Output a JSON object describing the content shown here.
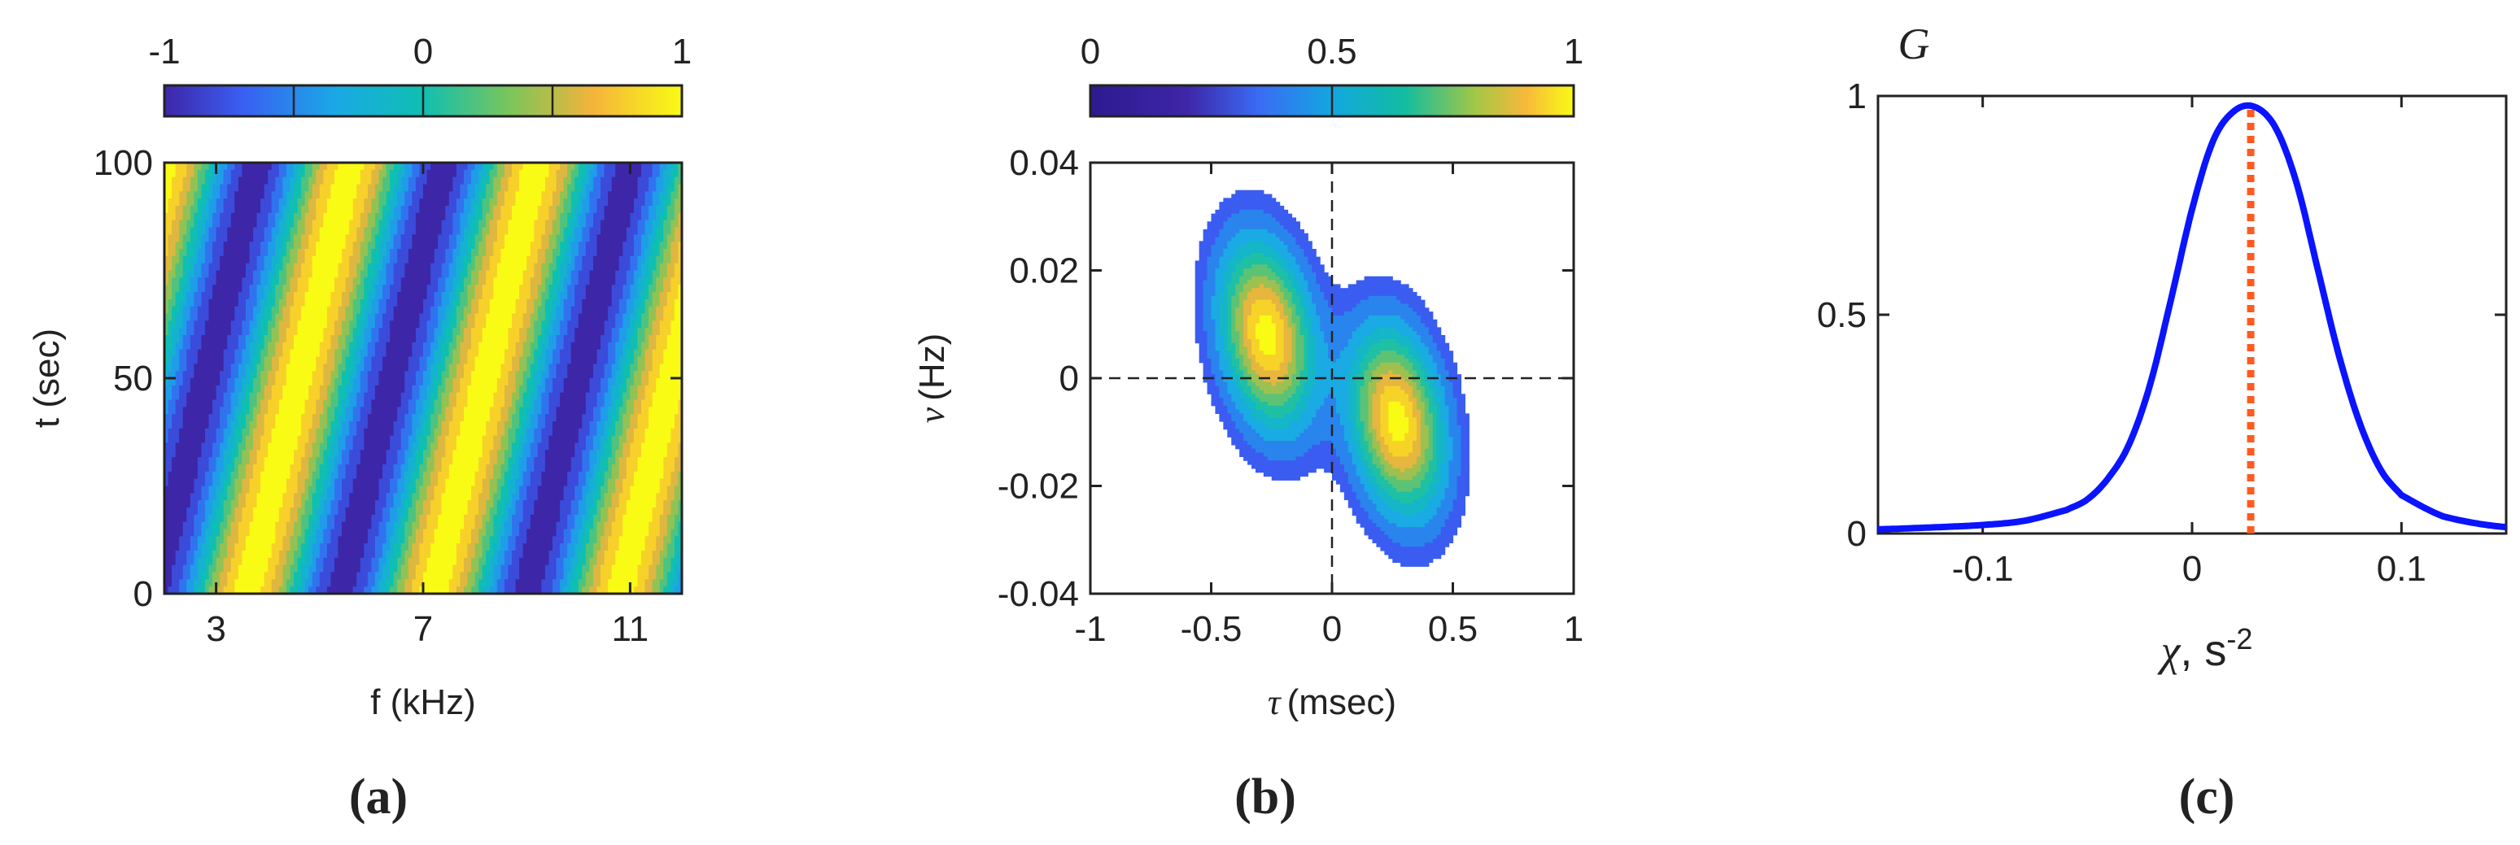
{
  "chart_data": [
    {
      "type": "heatmap",
      "panel_label": "(a)",
      "xlabel": "f (kHz)",
      "ylabel": "t (sec)",
      "xlim": [
        2,
        12
      ],
      "ylim": [
        0,
        100
      ],
      "xticks": [
        "3",
        "7",
        "11"
      ],
      "xtick_values": [
        3,
        7,
        11
      ],
      "yticks": [
        "0",
        "50",
        "100"
      ],
      "ytick_values": [
        0,
        50,
        100
      ],
      "colorbar": {
        "ticks": [
          "-1",
          "0",
          "1"
        ],
        "range": [
          -1,
          1
        ],
        "position": "top"
      },
      "value_description": "cos(2*pi*(f - 0.02*t)/3.6)",
      "stripe_period_khz": 3.6,
      "stripe_drift_khz_per_sec": 0.02
    },
    {
      "type": "heatmap",
      "panel_label": "(b)",
      "xlabel": "τ (msec)",
      "ylabel": "ν (Hz)",
      "xlabel_symbol": "τ",
      "xlabel_unit": "(msec)",
      "ylabel_symbol": "ν",
      "ylabel_unit": "(Hz)",
      "xlim": [
        -1,
        1
      ],
      "ylim": [
        -0.04,
        0.04
      ],
      "xticks": [
        "-1",
        "-0.5",
        "0",
        "0.5",
        "1"
      ],
      "xtick_values": [
        -1,
        -0.5,
        0,
        0.5,
        1
      ],
      "yticks": [
        "-0.04",
        "-0.02",
        "0",
        "0.02",
        "0.04"
      ],
      "ytick_values": [
        -0.04,
        -0.02,
        0,
        0.02,
        0.04
      ],
      "colorbar": {
        "ticks": [
          "0",
          "0.5",
          "1"
        ],
        "range": [
          0,
          1
        ],
        "position": "top"
      },
      "peaks": [
        {
          "tau": -0.27,
          "nu": 0.008,
          "value": 1
        },
        {
          "tau": 0.27,
          "nu": -0.008,
          "value": 1
        }
      ],
      "reference_lines": [
        {
          "axis": "x",
          "value": 0
        },
        {
          "axis": "y",
          "value": 0
        }
      ]
    },
    {
      "type": "line",
      "panel_label": "(c)",
      "ylabel": "G",
      "xlabel_symbol": "χ",
      "xlabel_unit": ", s",
      "xlabel_exponent": "-2",
      "xlim": [
        -0.15,
        0.15
      ],
      "ylim": [
        0,
        1
      ],
      "xticks": [
        "-0.1",
        "0",
        "0.1"
      ],
      "xtick_values": [
        -0.1,
        0,
        0.1
      ],
      "yticks": [
        "0",
        "0.5",
        "1"
      ],
      "ytick_values": [
        0,
        0.5,
        1
      ],
      "series": [
        {
          "name": "G",
          "color": "#0a14ff",
          "x": [
            -0.15,
            -0.12,
            -0.1,
            -0.08,
            -0.06,
            -0.05,
            -0.04,
            -0.03,
            -0.02,
            -0.01,
            0,
            0.01,
            0.02,
            0.03,
            0.04,
            0.05,
            0.06,
            0.07,
            0.08,
            0.09,
            0.1,
            0.12,
            0.15
          ],
          "y": [
            0.01,
            0.015,
            0.02,
            0.03,
            0.055,
            0.08,
            0.13,
            0.21,
            0.35,
            0.55,
            0.76,
            0.92,
            0.99,
            1.0,
            0.95,
            0.82,
            0.62,
            0.42,
            0.26,
            0.15,
            0.09,
            0.04,
            0.015
          ]
        }
      ],
      "marker_line": {
        "x": 0.028,
        "color": "#ff5a1f",
        "style": "dotted"
      }
    }
  ],
  "labels": {
    "panel_a": "(a)",
    "panel_b": "(b)",
    "panel_c": "(c)"
  }
}
